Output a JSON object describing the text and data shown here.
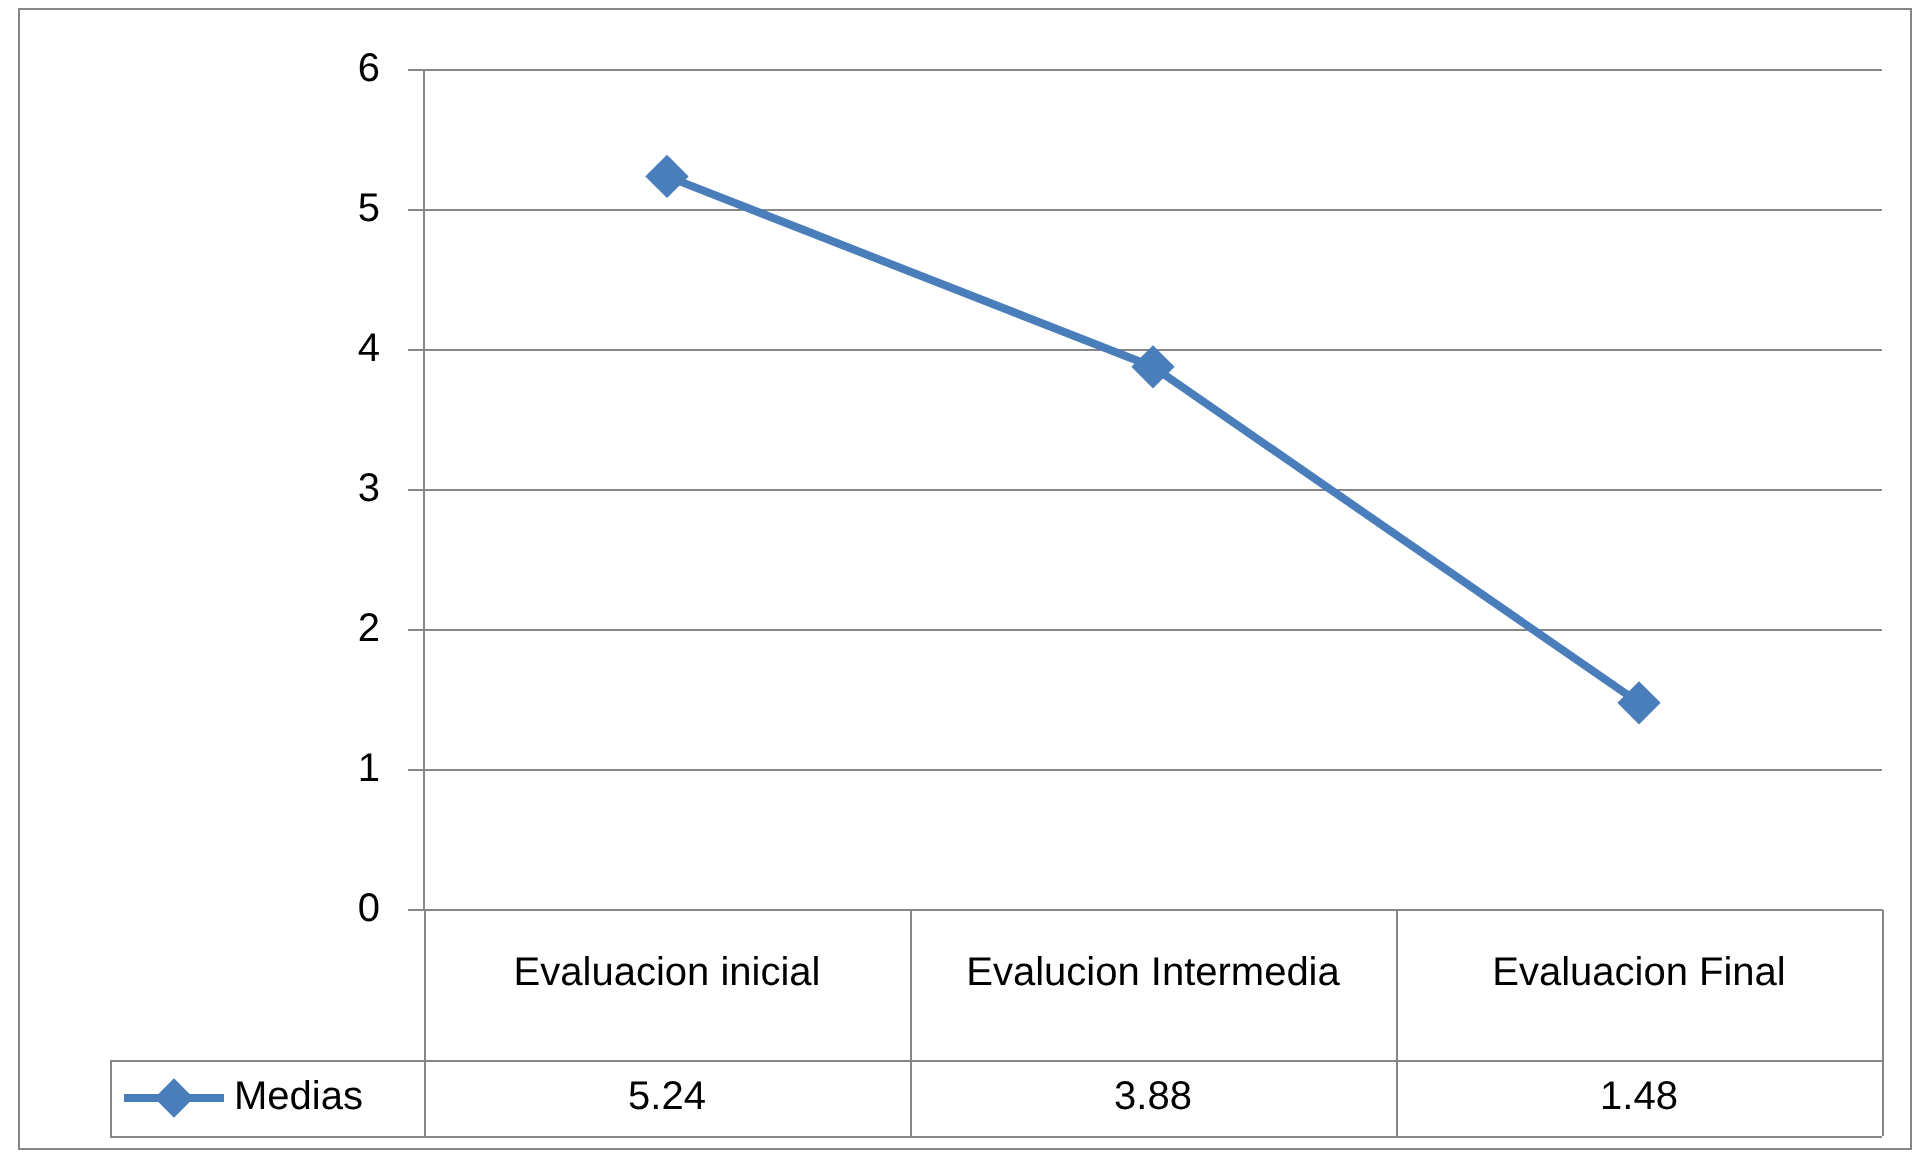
{
  "chart_data": {
    "type": "line",
    "categories": [
      "Evaluacion inicial",
      "Evalucion Intermedia",
      "Evaluacion Final"
    ],
    "series": [
      {
        "name": "Medias",
        "color": "#4a7ebb",
        "values": [
          5.24,
          3.88,
          1.48
        ]
      }
    ],
    "ylim": [
      0,
      6
    ],
    "yticks": [
      0,
      1,
      2,
      3,
      4,
      5,
      6
    ],
    "grid": "y",
    "marker": "diamond",
    "line_style": "solid",
    "data_labels": true,
    "legend": "bottom left"
  }
}
